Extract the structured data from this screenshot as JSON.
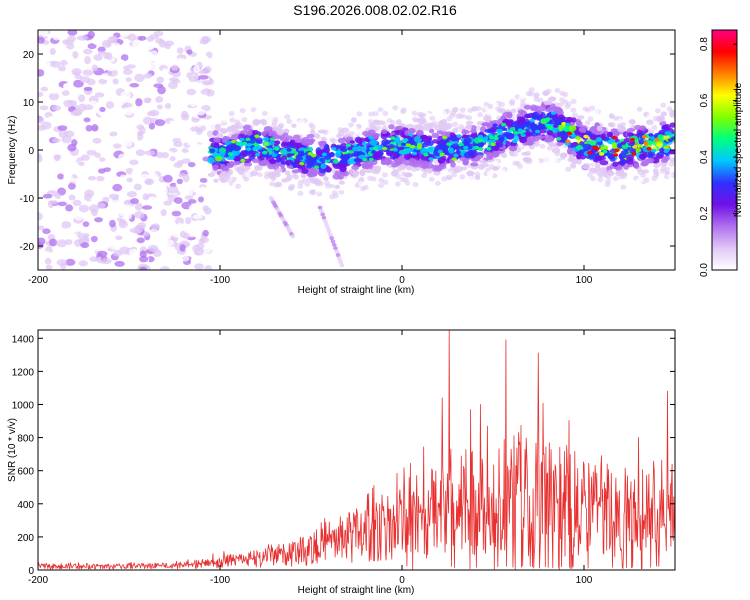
{
  "title": "S196.2026.008.02.02.R16",
  "chart_data": [
    {
      "type": "heatmap",
      "xlabel": "Height of straight line (km)",
      "ylabel": "Frequency (Hz)",
      "xlim": [
        -200,
        150
      ],
      "ylim": [
        -25,
        25
      ],
      "xticks": [
        -200,
        -100,
        0,
        100
      ],
      "yticks": [
        -20,
        -10,
        0,
        10,
        20
      ],
      "colorbar": {
        "label": "Normalized spectral amplitude",
        "range": [
          0.0,
          0.85
        ],
        "ticks": [
          0.0,
          0.2,
          0.4,
          0.6,
          0.8
        ],
        "colors": [
          "#ffffff",
          "#e0c8f5",
          "#b070f0",
          "#7010e8",
          "#3030ff",
          "#00c8ff",
          "#00ff80",
          "#80ff00",
          "#ffff00",
          "#ff8000",
          "#ff0000",
          "#ff0080"
        ]
      },
      "ridge": {
        "x": [
          -110,
          -100,
          -80,
          -60,
          -40,
          -20,
          0,
          20,
          40,
          60,
          80,
          90,
          100,
          120,
          150
        ],
        "freq": [
          0,
          -1,
          1,
          -1,
          -2,
          0,
          1,
          0,
          1,
          4,
          6,
          4,
          1,
          0,
          2
        ]
      },
      "noise_region": [
        -200,
        -105
      ]
    },
    {
      "type": "line",
      "xlabel": "Height of straight line (km)",
      "ylabel": "SNR (10 * v/v)",
      "xlim": [
        -200,
        150
      ],
      "ylim": [
        0,
        1450
      ],
      "xticks": [
        -200,
        -100,
        0,
        100
      ],
      "yticks": [
        0,
        200,
        400,
        600,
        800,
        1000,
        1200,
        1400
      ],
      "color": "#e83030",
      "envelope": {
        "x": [
          -200,
          -150,
          -120,
          -100,
          -80,
          -60,
          -40,
          -20,
          0,
          20,
          40,
          60,
          80,
          100,
          120,
          140,
          150
        ],
        "mean": [
          25,
          25,
          30,
          45,
          70,
          110,
          170,
          240,
          300,
          360,
          420,
          430,
          410,
          380,
          360,
          340,
          380
        ],
        "peak": [
          45,
          45,
          60,
          110,
          150,
          230,
          330,
          480,
          640,
          900,
          1100,
          1100,
          1050,
          900,
          750,
          900,
          600
        ]
      },
      "spikes": [
        {
          "x": 22,
          "y": 1040
        },
        {
          "x": 26,
          "y": 1445
        },
        {
          "x": 43,
          "y": 1000
        },
        {
          "x": 57,
          "y": 1390
        },
        {
          "x": 75,
          "y": 1310
        },
        {
          "x": 146,
          "y": 1080
        }
      ]
    }
  ]
}
